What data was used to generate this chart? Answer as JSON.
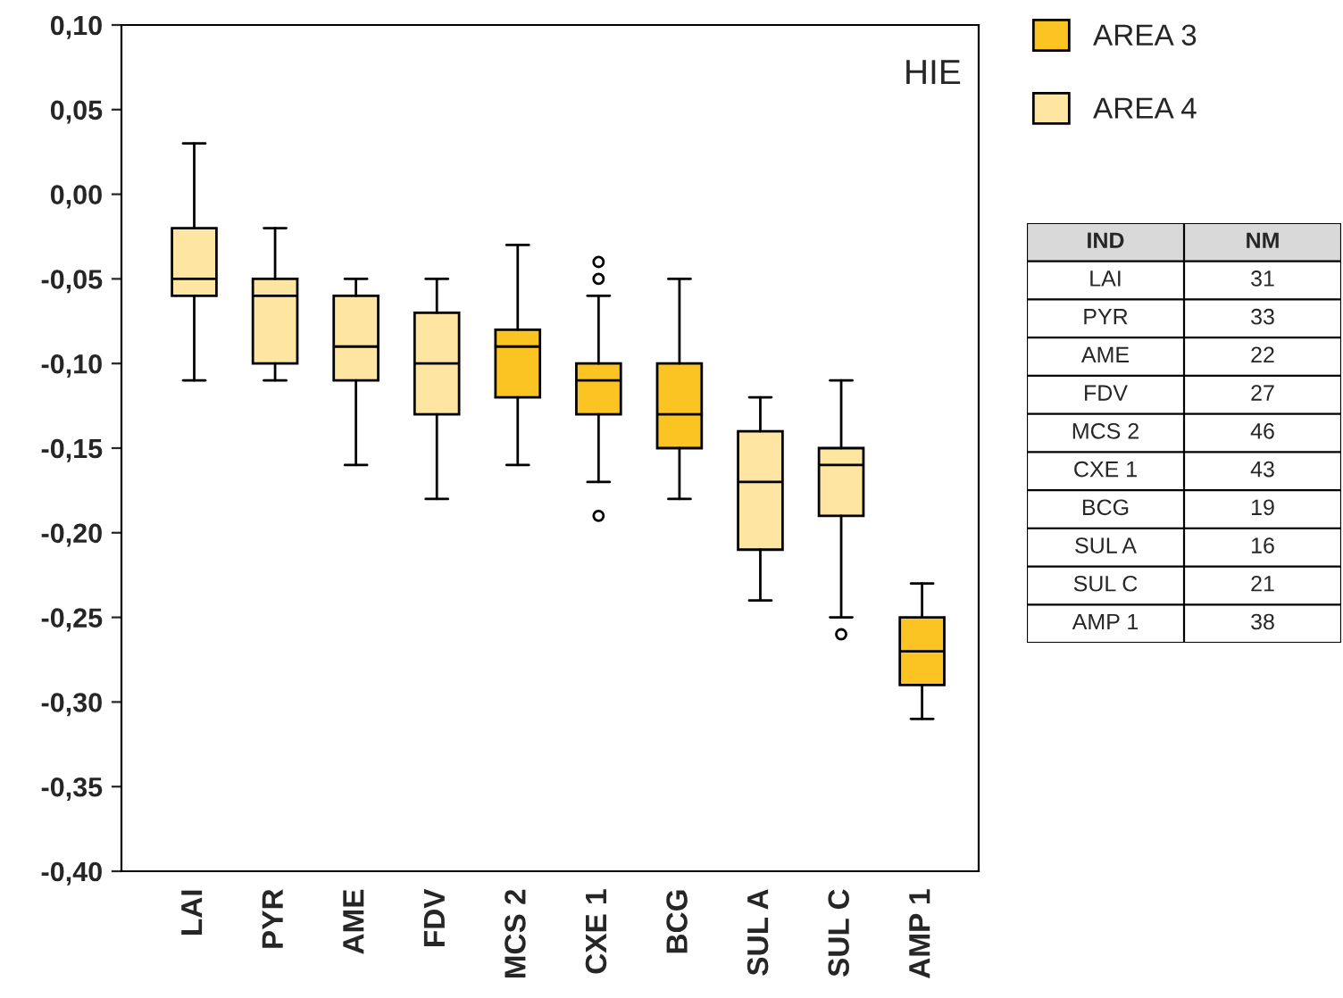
{
  "chart_data": [
    {
      "type": "box",
      "categories": [
        "LAI",
        "PYR",
        "AME",
        "FDV",
        "MCS 2",
        "CXE 1",
        "BCG",
        "SUL A",
        "SUL C",
        "AMP 1"
      ],
      "series": [
        {
          "name": "AREA 3",
          "color": "#fbc422",
          "boxes": [
            null,
            null,
            null,
            null,
            {
              "low": -0.16,
              "q1": -0.12,
              "median": -0.09,
              "q3": -0.08,
              "high": -0.03
            },
            {
              "low": -0.17,
              "q1": -0.13,
              "median": -0.11,
              "q3": -0.1,
              "high": -0.06,
              "outliers": [
                -0.04,
                -0.05,
                -0.19
              ]
            },
            {
              "low": -0.18,
              "q1": -0.15,
              "median": -0.13,
              "q3": -0.1,
              "high": -0.05
            },
            null,
            null,
            {
              "low": -0.31,
              "q1": -0.29,
              "median": -0.27,
              "q3": -0.25,
              "high": -0.23
            }
          ]
        },
        {
          "name": "AREA 4",
          "color": "#fee5a2",
          "boxes": [
            {
              "low": -0.11,
              "q1": -0.06,
              "median": -0.05,
              "q3": -0.02,
              "high": 0.03
            },
            {
              "low": -0.11,
              "q1": -0.1,
              "median": -0.06,
              "q3": -0.05,
              "high": -0.02
            },
            {
              "low": -0.16,
              "q1": -0.11,
              "median": -0.09,
              "q3": -0.06,
              "high": -0.05
            },
            {
              "low": -0.18,
              "q1": -0.13,
              "median": -0.1,
              "q3": -0.07,
              "high": -0.05
            },
            null,
            null,
            null,
            {
              "low": -0.24,
              "q1": -0.21,
              "median": -0.17,
              "q3": -0.14,
              "high": -0.12
            },
            {
              "low": -0.25,
              "q1": -0.19,
              "median": -0.16,
              "q3": -0.15,
              "high": -0.11,
              "outliers": [
                -0.26
              ]
            },
            null
          ]
        }
      ],
      "ylim": [
        -0.4,
        0.1
      ],
      "yticks": [
        {
          "value": -0.4,
          "label": "-0,40"
        },
        {
          "value": -0.35,
          "label": "-0,35"
        },
        {
          "value": -0.3,
          "label": "-0,30"
        },
        {
          "value": -0.25,
          "label": "-0,25"
        },
        {
          "value": -0.2,
          "label": "-0,20"
        },
        {
          "value": -0.15,
          "label": "-0,15"
        },
        {
          "value": -0.1,
          "label": "-0,10"
        },
        {
          "value": -0.05,
          "label": "-0,05"
        },
        {
          "value": 0.0,
          "label": "0,00"
        },
        {
          "value": 0.05,
          "label": "0,05"
        },
        {
          "value": 0.1,
          "label": "0,10"
        }
      ],
      "annotations": [
        "HIE"
      ],
      "legend": "right",
      "grid": false
    },
    {
      "type": "other",
      "annotations": [
        "IND",
        "NM"
      ],
      "categories": [
        "LAI",
        "PYR",
        "AME",
        "FDV",
        "MCS 2",
        "CXE 1",
        "BCG",
        "SUL A",
        "SUL C",
        "AMP 1"
      ],
      "values": [
        31,
        33,
        22,
        27,
        46,
        43,
        19,
        16,
        21,
        38
      ],
      "data_labels": true
    }
  ]
}
